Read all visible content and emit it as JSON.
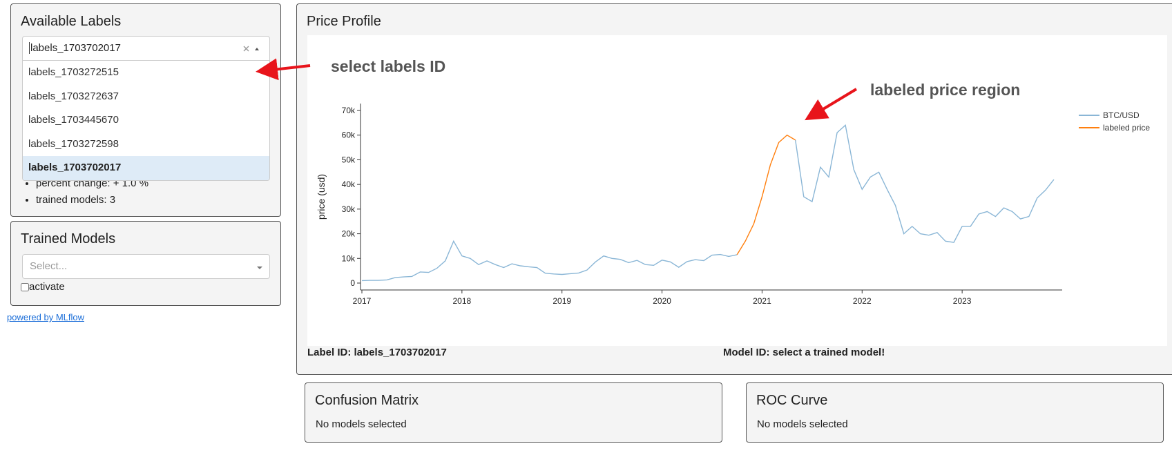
{
  "available_labels": {
    "title": "Available Labels",
    "selected": "labels_1703702017",
    "options": [
      "labels_1703272515",
      "labels_1703272637",
      "labels_1703445670",
      "labels_1703272598",
      "labels_1703702017"
    ],
    "info": [
      "percent change: + 1.0 %",
      "trained models: 3"
    ]
  },
  "trained_models": {
    "title": "Trained Models",
    "placeholder": "Select...",
    "checkbox_label": "activate"
  },
  "footer_link": "powered by MLflow",
  "price_profile": {
    "title": "Price Profile",
    "label_id": "Label ID: labels_1703702017",
    "model_id": "Model ID: select a trained model!"
  },
  "confusion_matrix": {
    "title": "Confusion Matrix",
    "message": "No models selected"
  },
  "roc_curve": {
    "title": "ROC Curve",
    "message": "No models selected"
  },
  "chart_data": {
    "type": "line",
    "ylabel": "price (usd)",
    "annotations": [
      "select labels ID",
      "labeled price region"
    ],
    "x": [
      2017,
      2017.083,
      2017.167,
      2017.25,
      2017.333,
      2017.417,
      2017.5,
      2017.583,
      2017.667,
      2017.75,
      2017.833,
      2017.917,
      2018,
      2018.083,
      2018.167,
      2018.25,
      2018.333,
      2018.417,
      2018.5,
      2018.583,
      2018.667,
      2018.75,
      2018.833,
      2018.917,
      2019,
      2019.083,
      2019.167,
      2019.25,
      2019.333,
      2019.417,
      2019.5,
      2019.583,
      2019.667,
      2019.75,
      2019.833,
      2019.917,
      2020,
      2020.083,
      2020.167,
      2020.25,
      2020.333,
      2020.417,
      2020.5,
      2020.583,
      2020.667,
      2020.75,
      2020.833,
      2020.917,
      2021,
      2021.083,
      2021.167,
      2021.25,
      2021.333,
      2021.417,
      2021.5,
      2021.583,
      2021.667,
      2021.75,
      2021.833,
      2021.917,
      2022,
      2022.083,
      2022.167,
      2022.25,
      2022.333,
      2022.417,
      2022.5,
      2022.583,
      2022.667,
      2022.75,
      2022.833,
      2022.917,
      2023,
      2023.083,
      2023.167,
      2023.25,
      2023.333,
      2023.417,
      2023.5,
      2023.583,
      2023.667,
      2023.75,
      2023.833,
      2023.917
    ],
    "series": [
      {
        "name": "BTC/USD",
        "color": "#8ab6d6",
        "values": [
          1000,
          1100,
          1100,
          1300,
          2200,
          2500,
          2700,
          4500,
          4300,
          6000,
          9000,
          17000,
          11000,
          10000,
          7500,
          9000,
          7500,
          6300,
          7800,
          7000,
          6600,
          6300,
          4000,
          3700,
          3500,
          3800,
          4100,
          5300,
          8500,
          11000,
          10000,
          9600,
          8300,
          9200,
          7500,
          7200,
          9300,
          8600,
          6400,
          8700,
          9500,
          9100,
          11300,
          11600,
          10800,
          11500,
          null,
          null,
          null,
          null,
          null,
          null,
          58000,
          35000,
          33000,
          47000,
          43000,
          61000,
          64000,
          46000,
          38000,
          43000,
          45000,
          38000,
          31500,
          20000,
          23000,
          20000,
          19400,
          20500,
          17000,
          16500,
          23000,
          23000,
          28000,
          29000,
          27000,
          30500,
          29000,
          26000,
          27000,
          34500,
          37700,
          42000
        ]
      },
      {
        "name": "labeled price",
        "color": "#ff7f0e",
        "values": [
          null,
          null,
          null,
          null,
          null,
          null,
          null,
          null,
          null,
          null,
          null,
          null,
          null,
          null,
          null,
          null,
          null,
          null,
          null,
          null,
          null,
          null,
          null,
          null,
          null,
          null,
          null,
          null,
          null,
          null,
          null,
          null,
          null,
          null,
          null,
          null,
          null,
          null,
          null,
          null,
          null,
          null,
          null,
          null,
          null,
          11500,
          17000,
          24000,
          35000,
          48000,
          57000,
          60000,
          58000,
          null,
          null,
          null,
          null,
          null,
          null,
          null,
          null,
          null,
          null,
          null,
          null,
          null,
          null,
          null,
          null,
          null,
          null,
          null,
          null,
          null,
          null,
          null,
          null,
          null,
          null,
          null,
          null,
          null,
          null,
          null
        ]
      }
    ],
    "xlim": [
      2017,
      2024
    ],
    "xticks": [
      2017,
      2018,
      2019,
      2020,
      2021,
      2022,
      2023
    ],
    "ylim": [
      -2800,
      72800
    ],
    "yticks": [
      0,
      {
        "value": 10000,
        "label": "10k"
      },
      {
        "value": 20000,
        "label": "20k"
      },
      {
        "value": 30000,
        "label": "30k"
      },
      {
        "value": 40000,
        "label": "40k"
      },
      {
        "value": 50000,
        "label": "50k"
      },
      {
        "value": 60000,
        "label": "60k"
      },
      {
        "value": 70000,
        "label": "70k"
      }
    ],
    "grid": false,
    "legend": "upper right"
  }
}
